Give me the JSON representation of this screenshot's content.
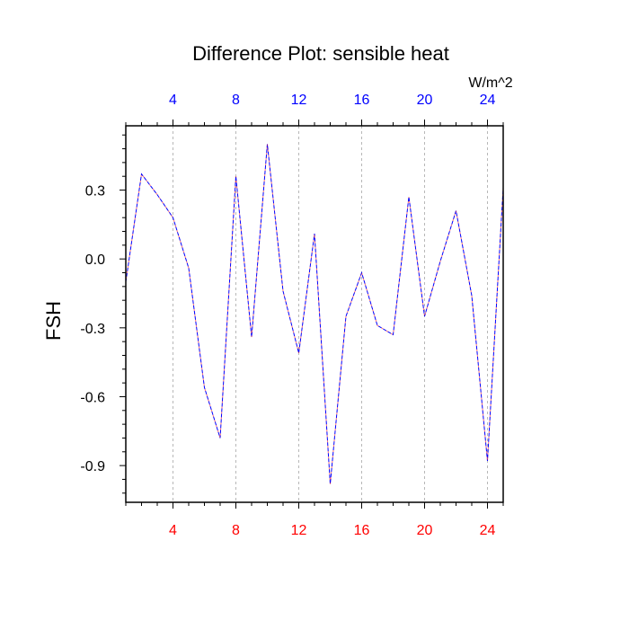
{
  "chart_data": {
    "type": "line",
    "title": "Difference Plot: sensible heat",
    "xlabel": "",
    "ylabel": "FSH",
    "units": "W/m^2",
    "xlim": [
      1,
      25
    ],
    "ylim": [
      -1.06,
      0.58
    ],
    "x_ticks": [
      4,
      8,
      12,
      16,
      20,
      24
    ],
    "y_ticks": [
      0.3,
      0.0,
      -0.3,
      -0.6,
      -0.9
    ],
    "y_tick_labels": [
      "0.3",
      "0.0",
      "-0.3",
      "-0.6",
      "-0.9"
    ],
    "bottom_tick_color": "#ff0000",
    "top_tick_color": "#0000ff",
    "grid": "vertical dashed at x ticks",
    "series": [
      {
        "color": "#0000ff",
        "overlay_color": "#ff0000",
        "line_style": "dashed",
        "x": [
          1,
          2,
          3,
          4,
          5,
          6,
          7,
          8,
          9,
          10,
          11,
          12,
          13,
          14,
          15,
          16,
          17,
          18,
          19,
          20,
          21,
          22,
          23,
          24,
          25
        ],
        "values": [
          -0.1,
          0.37,
          0.28,
          0.18,
          -0.04,
          -0.56,
          -0.78,
          0.36,
          -0.34,
          0.5,
          -0.14,
          -0.41,
          0.11,
          -0.98,
          -0.25,
          -0.06,
          -0.29,
          -0.33,
          0.27,
          -0.25,
          -0.01,
          0.21,
          -0.16,
          -0.88,
          0.31
        ]
      }
    ]
  }
}
